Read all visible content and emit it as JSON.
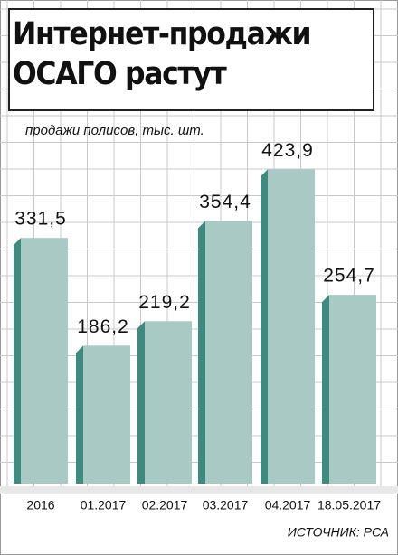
{
  "chart_data": {
    "type": "bar",
    "title": "Интернет-продажи ОСАГО растут",
    "subtitle": "продажи полисов, тыс. шт.",
    "source": "ИСТОЧНИК: РСА",
    "categories": [
      "2016",
      "01.2017",
      "02.2017",
      "03.2017",
      "04.2017",
      "18.05.2017"
    ],
    "values": [
      331.5,
      186.2,
      219.2,
      354.4,
      423.9,
      254.7
    ],
    "value_labels": [
      "331,5",
      "186,2",
      "219,2",
      "354,4",
      "423,9",
      "254,7"
    ],
    "color": "#a9c9c5",
    "side_color": "#3f8a7f"
  }
}
